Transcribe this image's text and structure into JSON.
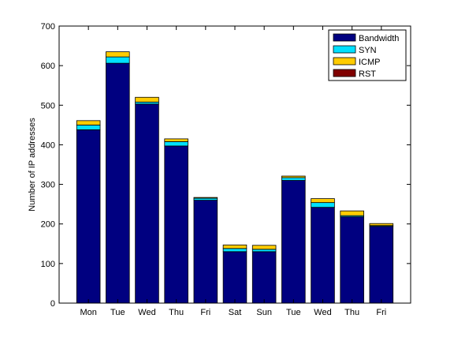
{
  "chart_data": {
    "type": "bar",
    "stacked": true,
    "categories": [
      "Mon",
      "Tue",
      "Wed",
      "Thu",
      "Fri",
      "Sat",
      "Sun",
      "Tue",
      "Wed",
      "Thu",
      "Fri"
    ],
    "series": [
      {
        "name": "Bandwidth",
        "color": "#000080",
        "values": [
          438,
          606,
          503,
          397,
          260,
          130,
          130,
          310,
          242,
          218,
          194
        ]
      },
      {
        "name": "SYN",
        "color": "#00e0ff",
        "values": [
          12,
          16,
          5,
          11,
          5,
          8,
          6,
          7,
          12,
          3,
          2
        ]
      },
      {
        "name": "ICMP",
        "color": "#ffcc00",
        "values": [
          11,
          13,
          12,
          7,
          2,
          9,
          10,
          4,
          10,
          12,
          5
        ]
      },
      {
        "name": "RST",
        "color": "#800000",
        "values": [
          0,
          0,
          0,
          0,
          0,
          0,
          0,
          0,
          0,
          0,
          0
        ]
      }
    ],
    "title": "",
    "xlabel": "",
    "ylabel": "Number of IP addresses",
    "ylim": [
      0,
      700
    ],
    "yticks": [
      0,
      100,
      200,
      300,
      400,
      500,
      600,
      700
    ],
    "grid": false,
    "legend_position": "top-right"
  }
}
